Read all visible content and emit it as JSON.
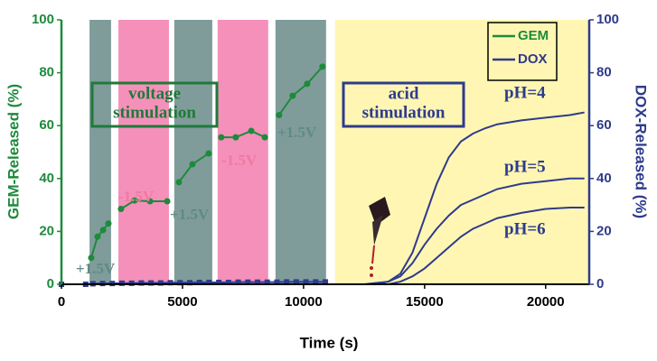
{
  "chart_data": {
    "type": "line",
    "xlabel": "Time (s)",
    "ylabel": "GEM-Released (%)",
    "y2label": "DOX-Released (%)",
    "xlim": [
      0,
      21800
    ],
    "xticks": [
      0,
      5000,
      10000,
      15000,
      20000
    ],
    "ylim": [
      0,
      100
    ],
    "yticks": [
      0,
      20,
      40,
      60,
      80,
      100
    ],
    "y2lim": [
      0,
      100
    ],
    "y2ticks": [
      0,
      20,
      40,
      60,
      80,
      100
    ],
    "legend": "top-right",
    "regions": [
      {
        "start": 1160,
        "end": 2050,
        "color": "#7f9c9a"
      },
      {
        "start": 2350,
        "end": 4440,
        "color": "#f590ba"
      },
      {
        "start": 4660,
        "end": 6230,
        "color": "#7f9c9a"
      },
      {
        "start": 6450,
        "end": 8540,
        "color": "#f590ba"
      },
      {
        "start": 8840,
        "end": 10930,
        "color": "#7f9c9a"
      },
      {
        "start": 11300,
        "end": 21800,
        "color": "#fff6b3"
      }
    ],
    "series": [
      {
        "name": "GEM",
        "color": "#1e8a3c",
        "axis": "y",
        "marker": "circle",
        "x": [
          1230,
          1490,
          1720,
          1940,
          null,
          2460,
          3020,
          3660,
          4370,
          null,
          4850,
          5410,
          6080,
          null,
          6600,
          7200,
          7840,
          8400,
          null,
          8990,
          9550,
          10150,
          10780
        ],
        "values": [
          10,
          18,
          20.5,
          23,
          null,
          28.5,
          31.7,
          31.4,
          31.4,
          null,
          38.6,
          45.4,
          49.5,
          null,
          55.6,
          55.6,
          58,
          55.6,
          null,
          64,
          71.3,
          75.8,
          82.3
        ]
      },
      {
        "name": "DOX",
        "color": "#2e3b8c",
        "axis": "y2",
        "marker": "square",
        "x": [
          0,
          1000,
          1300,
          1700,
          2100,
          2500,
          2900,
          3300,
          3700,
          4100,
          4500,
          4900,
          5300,
          5700,
          6100,
          6500,
          6900,
          7300,
          7700,
          8100,
          8500,
          8900,
          9300,
          9700,
          10100,
          10500,
          10900
        ],
        "values": [
          0,
          0,
          0.2,
          0.3,
          0.3,
          0.4,
          0.4,
          0.5,
          0.5,
          0.5,
          0.6,
          0.6,
          0.6,
          0.7,
          0.7,
          0.7,
          0.7,
          0.8,
          0.8,
          0.8,
          0.8,
          0.8,
          0.9,
          0.9,
          0.9,
          0.9,
          0.9
        ]
      },
      {
        "label": "pH=4",
        "color": "#2e3b8c",
        "axis": "y2",
        "x": [
          11500,
          12500,
          13000,
          13500,
          14000,
          14500,
          15000,
          15500,
          16000,
          16500,
          17000,
          17500,
          18000,
          19000,
          20000,
          21000,
          21600
        ],
        "values": [
          0,
          0,
          0.5,
          1,
          4,
          12,
          25,
          38,
          48,
          54,
          57,
          59,
          60.5,
          62,
          63,
          64,
          65
        ]
      },
      {
        "label": "pH=5",
        "color": "#2e3b8c",
        "axis": "y2",
        "x": [
          11500,
          13000,
          13500,
          14000,
          14500,
          15000,
          15500,
          16000,
          16500,
          17000,
          17500,
          18000,
          19000,
          20000,
          21000,
          21600
        ],
        "values": [
          0,
          0,
          1,
          3,
          8,
          15,
          21,
          26,
          30,
          32,
          34,
          36,
          38,
          39,
          40,
          40
        ]
      },
      {
        "label": "pH=6",
        "color": "#2e3b8c",
        "axis": "y2",
        "x": [
          11500,
          13500,
          14000,
          14500,
          15000,
          15500,
          16000,
          16500,
          17000,
          17500,
          18000,
          19000,
          20000,
          21000,
          21600
        ],
        "values": [
          0,
          0,
          1,
          3,
          6,
          10,
          14,
          18,
          21,
          23,
          25,
          27,
          28.5,
          29,
          29
        ]
      }
    ],
    "annotations": [
      {
        "text": "+1.5V",
        "color": "#5f8a86"
      },
      {
        "text": "-1.5V",
        "color": "#ee7aa3"
      },
      {
        "text": "+1.5V",
        "color": "#5f8a86"
      },
      {
        "text": "-1.5V",
        "color": "#ee7aa3"
      },
      {
        "text": "+1.5V",
        "color": "#5f8a86"
      }
    ],
    "text_boxes": [
      {
        "lines": [
          "voltage",
          "stimulation"
        ],
        "color": "#1e7a3a"
      },
      {
        "lines": [
          "acid",
          "stimulation"
        ],
        "color": "#2e3b8c"
      }
    ]
  }
}
